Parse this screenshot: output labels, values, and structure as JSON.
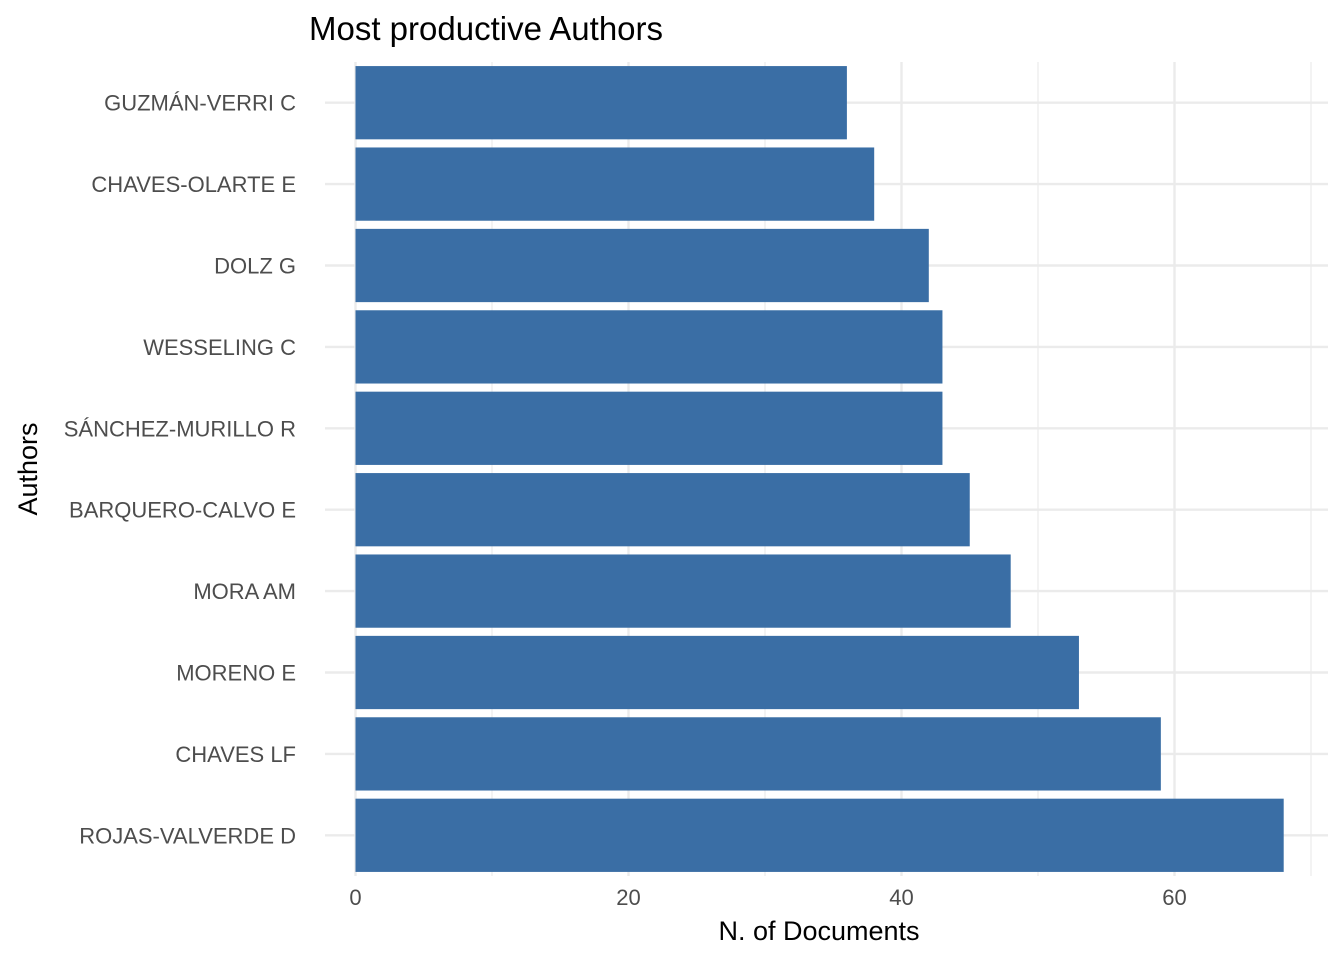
{
  "chart_data": {
    "type": "bar",
    "orientation": "horizontal",
    "title": "Most productive Authors",
    "xlabel": "N. of Documents",
    "ylabel": "Authors",
    "categories": [
      "GUZMÁN-VERRI C",
      "CHAVES-OLARTE E",
      "DOLZ G",
      "WESSELING C",
      "SÁNCHEZ-MURILLO R",
      "BARQUERO-CALVO E",
      "MORA AM",
      "MORENO E",
      "CHAVES LF",
      "ROJAS-VALVERDE D"
    ],
    "values": [
      36,
      38,
      42,
      43,
      43,
      45,
      48,
      53,
      59,
      68
    ],
    "xlim": [
      0,
      71
    ],
    "xticks": [
      0,
      20,
      40,
      60
    ],
    "grid": true,
    "legend": "none",
    "bar_color": "#3A6EA5"
  }
}
